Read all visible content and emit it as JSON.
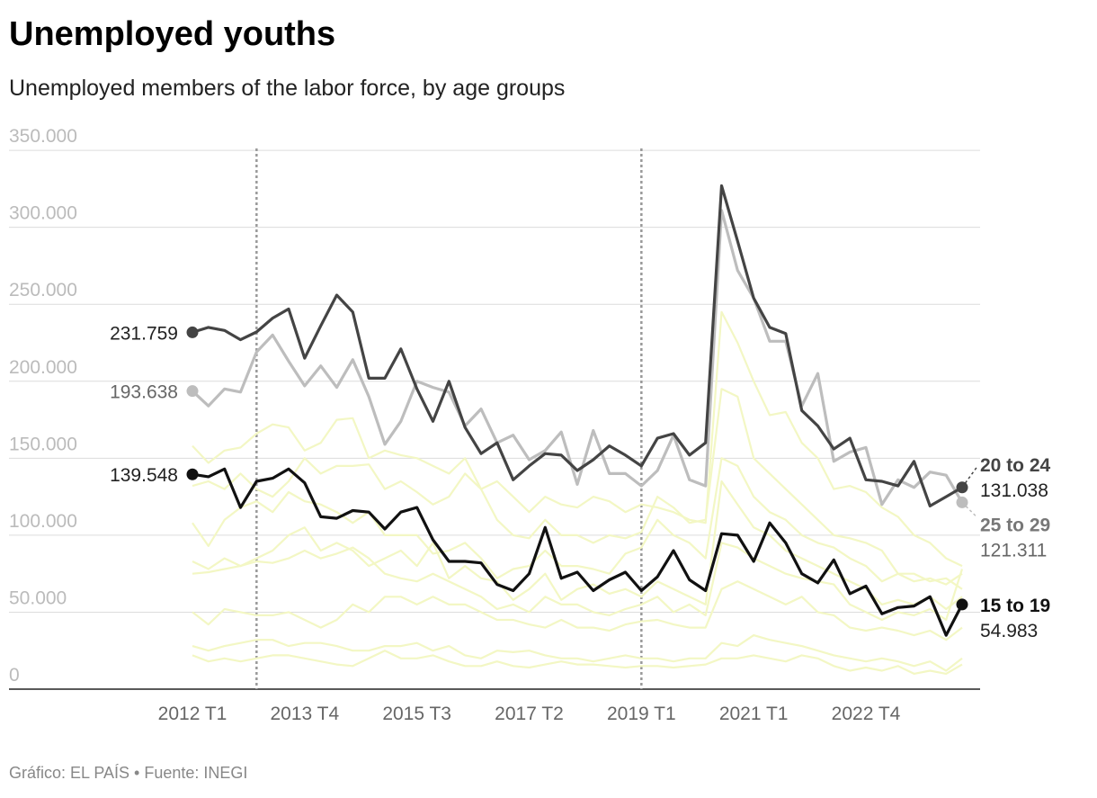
{
  "chart_data": {
    "type": "line",
    "title": "Unemployed youths",
    "subtitle": "Unemployed members of the labor force, by age groups",
    "source": "Gráfico: EL PAÍS • Fuente: INEGI",
    "categories": [
      "2012 T1",
      null,
      null,
      null,
      null,
      null,
      null,
      "2013 T4",
      null,
      null,
      null,
      null,
      null,
      null,
      "2015 T3",
      null,
      null,
      null,
      null,
      null,
      null,
      "2017 T2",
      null,
      null,
      null,
      null,
      null,
      null,
      "2019 T1",
      null,
      null,
      null,
      null,
      null,
      null,
      "2021 T1",
      null,
      null,
      null,
      null,
      null,
      null,
      "2022 T4",
      null,
      null,
      null,
      null,
      null,
      null
    ],
    "ylim": [
      0,
      360000
    ],
    "yticks": [
      0,
      {
        "value": 50000,
        "label": "50.000"
      },
      {
        "value": 100000,
        "label": "100.000"
      },
      {
        "value": 150000,
        "label": "150.000"
      },
      {
        "value": 200000,
        "label": "200.000"
      },
      {
        "value": 250000,
        "label": "250.000"
      },
      {
        "value": 300000,
        "label": "300.000"
      },
      {
        "value": 350000,
        "label": "350.000"
      }
    ],
    "grid": true,
    "reference_lines": [
      4,
      28
    ],
    "series": [
      {
        "color": "#f3f7c4",
        "values": [
          158000,
          147000,
          155000,
          157000,
          166000,
          172000,
          170000,
          155000,
          160000,
          175000,
          176000,
          150000,
          155000,
          152000,
          150000,
          145000,
          140000,
          150000,
          130000,
          135000,
          125000,
          115000,
          125000,
          120000,
          118000,
          125000,
          122000,
          115000,
          120000,
          118000,
          115000,
          110000,
          108000,
          245000,
          225000,
          200000,
          178000,
          180000,
          160000,
          150000,
          130000,
          132000,
          128000,
          118000,
          112000,
          100000,
          95000,
          85000,
          80000
        ]
      },
      {
        "color": "#f3f7c4",
        "values": [
          132000,
          135000,
          130000,
          140000,
          130000,
          125000,
          135000,
          150000,
          140000,
          145000,
          145000,
          146000,
          130000,
          135000,
          128000,
          120000,
          125000,
          140000,
          130000,
          110000,
          100000,
          98000,
          110000,
          100000,
          100000,
          95000,
          100000,
          98000,
          102000,
          125000,
          118000,
          108000,
          110000,
          195000,
          190000,
          150000,
          140000,
          130000,
          120000,
          110000,
          100000,
          98000,
          95000,
          90000,
          75000,
          75000,
          70000,
          72000,
          65000
        ]
      },
      {
        "color": "#f3f7c4",
        "values": [
          108000,
          93000,
          110000,
          118000,
          122000,
          115000,
          128000,
          122000,
          120000,
          115000,
          108000,
          115000,
          100000,
          100000,
          100000,
          88000,
          90000,
          95000,
          85000,
          72000,
          78000,
          80000,
          90000,
          80000,
          80000,
          78000,
          75000,
          88000,
          92000,
          110000,
          100000,
          95000,
          85000,
          150000,
          145000,
          125000,
          115000,
          110000,
          100000,
          95000,
          92000,
          85000,
          80000,
          70000,
          75000,
          70000,
          72000,
          68000,
          75000
        ]
      },
      {
        "color": "#f3f7c4",
        "values": [
          83000,
          78000,
          85000,
          80000,
          85000,
          90000,
          100000,
          105000,
          90000,
          95000,
          90000,
          80000,
          85000,
          90000,
          80000,
          95000,
          72000,
          80000,
          72000,
          70000,
          58000,
          65000,
          75000,
          58000,
          65000,
          68000,
          62000,
          65000,
          60000,
          70000,
          65000,
          60000,
          55000,
          135000,
          120000,
          105000,
          100000,
          90000,
          85000,
          80000,
          75000,
          70000,
          65000,
          55000,
          58000,
          55000,
          60000,
          52000,
          60000
        ]
      },
      {
        "color": "#f3f7c4",
        "values": [
          75000,
          76000,
          78000,
          80000,
          83000,
          82000,
          85000,
          90000,
          85000,
          88000,
          92000,
          85000,
          75000,
          72000,
          70000,
          75000,
          70000,
          65000,
          60000,
          52000,
          55000,
          50000,
          60000,
          55000,
          55000,
          50000,
          48000,
          52000,
          55000,
          60000,
          50000,
          55000,
          48000,
          95000,
          92000,
          85000,
          80000,
          75000,
          72000,
          70000,
          68000,
          55000,
          50000,
          45000,
          50000,
          48000,
          52000,
          45000,
          78000
        ]
      },
      {
        "color": "#f3f7c4",
        "values": [
          50000,
          42000,
          52000,
          50000,
          48000,
          48000,
          50000,
          45000,
          40000,
          45000,
          55000,
          50000,
          60000,
          60000,
          55000,
          60000,
          55000,
          55000,
          50000,
          45000,
          45000,
          42000,
          40000,
          45000,
          40000,
          40000,
          38000,
          42000,
          44000,
          45000,
          42000,
          40000,
          40000,
          65000,
          70000,
          65000,
          60000,
          55000,
          60000,
          50000,
          48000,
          40000,
          38000,
          40000,
          38000,
          35000,
          38000,
          32000,
          40000
        ]
      },
      {
        "color": "#f3f7c4",
        "values": [
          28000,
          25000,
          28000,
          30000,
          32000,
          32000,
          28000,
          30000,
          30000,
          28000,
          25000,
          25000,
          28000,
          28000,
          30000,
          25000,
          28000,
          22000,
          20000,
          25000,
          24000,
          25000,
          22000,
          20000,
          20000,
          18000,
          20000,
          22000,
          20000,
          20000,
          18000,
          20000,
          20000,
          30000,
          28000,
          35000,
          32000,
          30000,
          28000,
          25000,
          22000,
          20000,
          18000,
          20000,
          18000,
          15000,
          18000,
          12000,
          20000
        ]
      },
      {
        "color": "#f3f7c4",
        "values": [
          22000,
          18000,
          20000,
          18000,
          20000,
          22000,
          22000,
          20000,
          18000,
          16000,
          15000,
          20000,
          25000,
          20000,
          20000,
          22000,
          18000,
          15000,
          15000,
          18000,
          15000,
          14000,
          16000,
          18000,
          16000,
          16000,
          15000,
          14000,
          15000,
          15000,
          14000,
          15000,
          16000,
          20000,
          20000,
          22000,
          20000,
          18000,
          22000,
          20000,
          15000,
          12000,
          14000,
          12000,
          15000,
          10000,
          12000,
          10000,
          16000
        ]
      },
      {
        "name": "25 to 29",
        "color": "#bdbdbd",
        "values": [
          193638,
          184000,
          195000,
          193000,
          219000,
          230000,
          213000,
          197000,
          210000,
          196000,
          214000,
          190000,
          159000,
          174000,
          200000,
          196000,
          193000,
          171000,
          182000,
          160000,
          165000,
          149000,
          155000,
          167000,
          133000,
          168000,
          140000,
          140000,
          132000,
          142000,
          165000,
          136000,
          132000,
          311000,
          272000,
          254000,
          226000,
          226000,
          184000,
          205000,
          148000,
          154000,
          157000,
          120000,
          136000,
          131000,
          141000,
          139000,
          121311
        ],
        "value_labels": [
          "193.638",
          null,
          null,
          null,
          null,
          null,
          null,
          null,
          null,
          null,
          null,
          null,
          null,
          null,
          null,
          null,
          null,
          null,
          null,
          null,
          null,
          null,
          null,
          null,
          null,
          null,
          null,
          null,
          null,
          null,
          null,
          null,
          null,
          null,
          null,
          null,
          null,
          null,
          null,
          null,
          null,
          null,
          null,
          null,
          null,
          null,
          null,
          null,
          "121.311"
        ]
      },
      {
        "name": "20 to 24",
        "color": "#444444",
        "values": [
          231759,
          235000,
          233000,
          227000,
          232000,
          241000,
          247000,
          215000,
          236000,
          256000,
          245000,
          202000,
          202000,
          221000,
          195000,
          174000,
          200000,
          170000,
          153000,
          160000,
          136000,
          145000,
          153000,
          152000,
          142000,
          149000,
          158000,
          152000,
          145000,
          163000,
          166000,
          152000,
          160000,
          327000,
          291000,
          254000,
          235000,
          231000,
          181000,
          171000,
          156000,
          163000,
          136000,
          135000,
          132000,
          148000,
          119000,
          125000,
          131038
        ],
        "value_labels": [
          "231.759",
          null,
          null,
          null,
          null,
          null,
          null,
          null,
          null,
          null,
          null,
          null,
          null,
          null,
          null,
          null,
          null,
          null,
          null,
          null,
          null,
          null,
          null,
          null,
          null,
          null,
          null,
          null,
          null,
          null,
          null,
          null,
          null,
          null,
          null,
          null,
          null,
          null,
          null,
          null,
          null,
          null,
          null,
          null,
          null,
          null,
          null,
          null,
          "131.038"
        ]
      },
      {
        "name": "15 to 19",
        "color": "#111111",
        "values": [
          139548,
          138000,
          143000,
          118000,
          135000,
          137000,
          143000,
          134000,
          112000,
          111000,
          116000,
          115000,
          104000,
          115000,
          118000,
          97000,
          83000,
          83000,
          82000,
          68000,
          64000,
          75000,
          105000,
          72000,
          76000,
          64000,
          71000,
          76000,
          64000,
          73000,
          90000,
          71000,
          64000,
          101000,
          100000,
          83000,
          108000,
          95000,
          75000,
          69000,
          84000,
          62000,
          67000,
          49000,
          53000,
          54000,
          60000,
          35000,
          54983
        ],
        "value_labels": [
          "139.548",
          null,
          null,
          null,
          null,
          null,
          null,
          null,
          null,
          null,
          null,
          null,
          null,
          null,
          null,
          null,
          null,
          null,
          null,
          null,
          null,
          null,
          null,
          null,
          null,
          null,
          null,
          null,
          null,
          null,
          null,
          null,
          null,
          null,
          null,
          null,
          null,
          null,
          null,
          null,
          null,
          null,
          null,
          null,
          null,
          null,
          null,
          null,
          "54.983"
        ]
      }
    ]
  }
}
